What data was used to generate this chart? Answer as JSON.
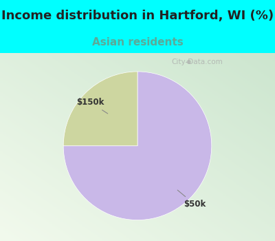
{
  "title": "Income distribution in Hartford, WI (%)",
  "subtitle": "Asian residents",
  "title_bg_color": "#00FFFF",
  "chart_bg_left": "#c8e8d0",
  "chart_bg_right": "#f0f8f2",
  "slices": [
    75,
    25
  ],
  "slice_labels": [
    "$50k",
    "$150k"
  ],
  "slice_colors": [
    "#c9b8e8",
    "#cdd6a0"
  ],
  "watermark": "City-Data.com",
  "title_fontsize": 13,
  "subtitle_fontsize": 11,
  "subtitle_color": "#5aaa99",
  "title_color": "#222222"
}
